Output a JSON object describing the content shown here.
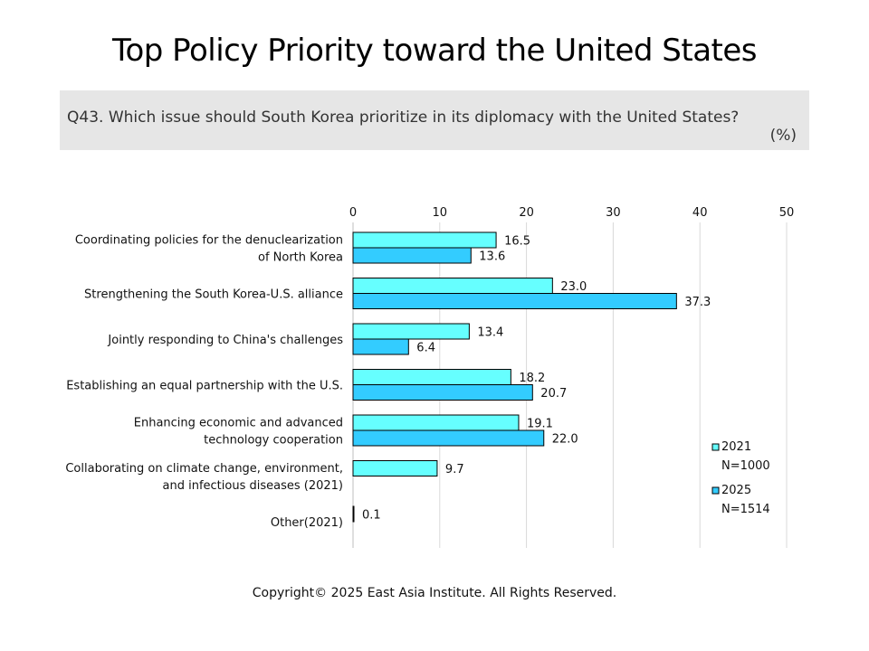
{
  "title": "Top Policy Priority toward the United States",
  "question": "Q43. Which issue should South Korea prioritize in its diplomacy with the United States?",
  "unit": "(%)",
  "copyright": "Copyright© 2025 East Asia Institute. All Rights Reserved.",
  "chart_data": {
    "type": "bar",
    "orientation": "horizontal",
    "xlim": [
      0,
      50
    ],
    "ticks": [
      "0",
      "10",
      "20",
      "30",
      "40",
      "50"
    ],
    "grid": true,
    "legend_position": "right",
    "categories": [
      [
        "Coordinating policies for the denuclearization",
        "of North Korea"
      ],
      [
        "Strengthening  the South Korea-U.S. alliance"
      ],
      [
        "Jointly responding to China's challenges"
      ],
      [
        "Establishing an equal partnership with the U.S."
      ],
      [
        "Enhancing economic and advanced",
        "technology cooperation"
      ],
      [
        "Collaborating on climate change, environment,",
        "and infectious diseases (2021)"
      ],
      [
        "Other(2021)"
      ]
    ],
    "series": [
      {
        "name": "2021",
        "note": "N=1000",
        "color": "#66ffff",
        "values": [
          16.5,
          23.0,
          13.4,
          18.2,
          19.1,
          9.7,
          0.1
        ],
        "labels": [
          "16.5",
          "23.0",
          "13.4",
          "18.2",
          "19.1",
          "9.7",
          "0.1"
        ]
      },
      {
        "name": "2025",
        "note": "N=1514",
        "color": "#33ccff",
        "values": [
          13.6,
          37.3,
          6.4,
          20.7,
          22.0,
          null,
          null
        ],
        "labels": [
          "13.6",
          "37.3",
          "6.4",
          "20.7",
          "22.0",
          null,
          null
        ]
      }
    ]
  }
}
